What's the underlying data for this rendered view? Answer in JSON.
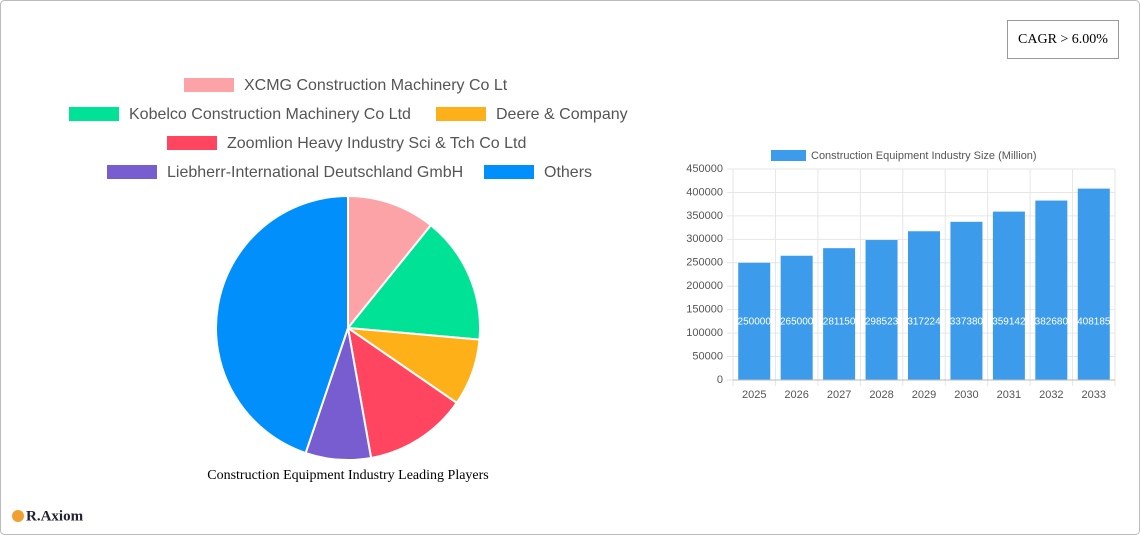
{
  "badge": "CAGR > 6.00%",
  "logo": "R.Axiom",
  "chart_data": [
    {
      "type": "pie",
      "title": "Construction Equipment Industry Leading Players",
      "categories": [
        "XCMG Construction Machinery Co  Lt",
        "Kobelco Construction Machinery Co  Ltd",
        "Deere & Company",
        "Zoomlion Heavy Industry Sci & Tch Co  Ltd",
        "Liebherr-International Deutschland GmbH",
        "Others"
      ],
      "values": [
        10.8,
        15.6,
        8.2,
        12.6,
        8,
        44.8
      ],
      "colors": [
        "#fba3a6",
        "#00e396",
        "#feb019",
        "#ff4560",
        "#775dd0",
        "#008ffb"
      ],
      "legend": "top"
    },
    {
      "type": "bar",
      "categories": [
        "2025",
        "2026",
        "2027",
        "2028",
        "2029",
        "2030",
        "2031",
        "2032",
        "2033"
      ],
      "series": [
        {
          "name": "Construction Equipment Industry Size (Million)",
          "color": "#3c9bea",
          "values": [
            250000,
            265000,
            281150,
            298523,
            317224,
            337380,
            359142,
            382680,
            408185
          ]
        }
      ],
      "ylim": [
        0,
        450000
      ],
      "yticks": [
        0,
        50000,
        100000,
        150000,
        200000,
        250000,
        300000,
        350000,
        400000,
        450000
      ],
      "grid": true,
      "legend": "top"
    }
  ]
}
